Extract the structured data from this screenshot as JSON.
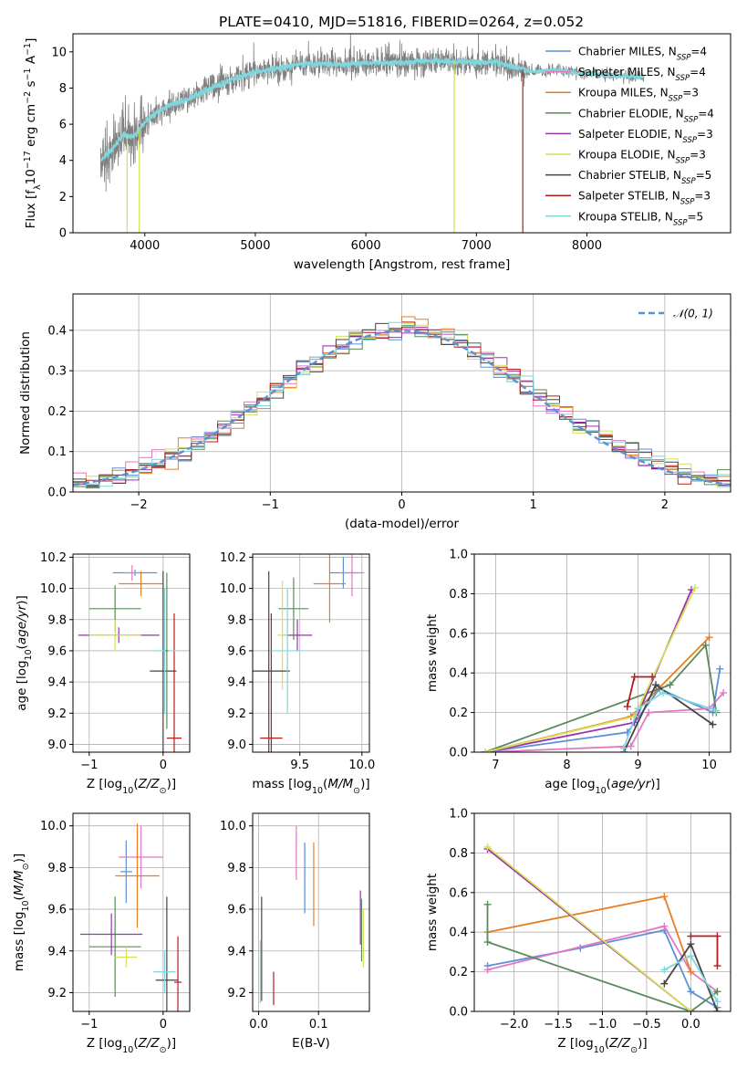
{
  "series_styles": [
    {
      "name": "Chabrier MILES",
      "nssp": "4",
      "color": "#5b8fd6"
    },
    {
      "name": "Salpeter MILES",
      "nssp": "4",
      "color": "#e377c2"
    },
    {
      "name": "Kroupa MILES",
      "nssp": "3",
      "color": "#e67e22"
    },
    {
      "name": "Chabrier ELODIE",
      "nssp": "4",
      "color": "#5a8a5a"
    },
    {
      "name": "Salpeter ELODIE",
      "nssp": "3",
      "color": "#9b30b0"
    },
    {
      "name": "Kroupa ELODIE",
      "nssp": "3",
      "color": "#d4e157"
    },
    {
      "name": "Chabrier STELIB",
      "nssp": "5",
      "color": "#444444"
    },
    {
      "name": "Salpeter STELIB",
      "nssp": "3",
      "color": "#b71c1c"
    },
    {
      "name": "Kroupa STELIB",
      "nssp": "5",
      "color": "#7fd6dc"
    }
  ],
  "chart_data": [
    {
      "id": "spectrum",
      "type": "line",
      "title": "PLATE=0410, MJD=51816, FIBERID=0264, z=0.052",
      "xlabel": "wavelength [Angstrom, rest frame]",
      "ylabel": "Flux [fλ10⁻¹⁷ erg cm⁻² s⁻¹ A⁻¹]",
      "xlim": [
        3350,
        9300
      ],
      "ylim": [
        0,
        11
      ],
      "xticks": [
        4000,
        5000,
        6000,
        7000,
        8000
      ],
      "yticks": [
        0,
        2,
        4,
        6,
        8,
        10
      ],
      "grid": false,
      "legend": "right",
      "data_color": "#808080",
      "model_color": "#7fd6dc",
      "continuum": {
        "x": [
          3600,
          3700,
          3800,
          3900,
          4000,
          4100,
          4200,
          4400,
          4600,
          4800,
          5000,
          5200,
          5400,
          5600,
          5800,
          6000,
          6300,
          6600,
          6900,
          7200,
          7500,
          7700,
          8000,
          8200,
          8500
        ],
        "y": [
          4.0,
          4.6,
          5.4,
          5.3,
          6.1,
          6.6,
          7.0,
          7.4,
          8.0,
          8.5,
          8.9,
          9.1,
          9.3,
          9.35,
          9.3,
          9.4,
          9.4,
          9.5,
          9.45,
          9.4,
          8.9,
          9.0,
          8.8,
          8.7,
          8.6
        ]
      },
      "annotation": "Salpeter MILES, N_SSP=4"
    },
    {
      "id": "residuals",
      "type": "histogram",
      "xlabel": "(data-model)/error",
      "ylabel": "Normed distribution",
      "xlim": [
        -2.5,
        2.5
      ],
      "ylim": [
        0,
        0.49
      ],
      "xticks": [
        -2,
        -1,
        0,
        1,
        2
      ],
      "yticks": [
        0.0,
        0.1,
        0.2,
        0.3,
        0.4
      ],
      "bin_width": 0.1,
      "grid": true,
      "legend": "top-right",
      "reference": {
        "name": "𝒩(0, 1)",
        "mean": 0,
        "sigma": 1,
        "color": "#5b8fd6"
      }
    },
    {
      "id": "age-vs-z",
      "type": "errorbar",
      "xlabel": "Z [log₁₀(Z/Z⊙)]",
      "ylabel": "age  [log₁₀(age/yr)]",
      "xlim": [
        -1.22,
        0.36
      ],
      "ylim": [
        8.95,
        10.22
      ],
      "xticks": [
        -1,
        0
      ],
      "yticks": [
        9.0,
        9.2,
        9.4,
        9.6,
        9.8,
        10.0,
        10.2
      ],
      "grid": true,
      "points": [
        {
          "s": 0,
          "x": -0.38,
          "y": 10.1,
          "xerr": 0.3,
          "yerr": 0.02
        },
        {
          "s": 1,
          "x": -0.42,
          "y": 10.1,
          "xerr": 0.1,
          "yerr": 0.05
        },
        {
          "s": 2,
          "x": -0.3,
          "y": 10.03,
          "xerr": 0.3,
          "yerr": 0.08
        },
        {
          "s": 3,
          "x": -0.65,
          "y": 9.87,
          "xerr": 0.35,
          "yerr": 0.15
        },
        {
          "s": 4,
          "x": -0.6,
          "y": 9.7,
          "xerr": 0.55,
          "yerr": 0.05
        },
        {
          "s": 5,
          "x": -0.65,
          "y": 9.7,
          "xerr": 0.35,
          "yerr": 0.1
        },
        {
          "s": 6,
          "x": 0.0,
          "y": 9.47,
          "xerr": 0.18,
          "yerr": 0.64
        },
        {
          "s": 7,
          "x": 0.15,
          "y": 9.04,
          "xerr": 0.1,
          "yerr": 0.8
        },
        {
          "s": 8,
          "x": 0.02,
          "y": 9.6,
          "xerr": 0.15,
          "yerr": 0.4
        },
        {
          "s": 3,
          "x": 0.05,
          "y": 9.6,
          "xerr": 0.02,
          "yerr": 0.5
        }
      ]
    },
    {
      "id": "age-vs-mass",
      "type": "errorbar",
      "xlabel": "mass [log₁₀(M/M⊙)]",
      "ylabel": "",
      "xlim": [
        9.12,
        10.06
      ],
      "ylim": [
        8.95,
        10.22
      ],
      "xticks": [
        9.5,
        10.0
      ],
      "yticks": [
        9.0,
        9.2,
        9.4,
        9.6,
        9.8,
        10.0,
        10.2
      ],
      "grid": true,
      "points": [
        {
          "s": 0,
          "x": 9.85,
          "y": 10.1,
          "xerr": 0.11,
          "yerr": 0.1
        },
        {
          "s": 1,
          "x": 9.92,
          "y": 10.1,
          "xerr": 0.1,
          "yerr": 0.15
        },
        {
          "s": 2,
          "x": 9.74,
          "y": 10.03,
          "xerr": 0.13,
          "yerr": 0.25
        },
        {
          "s": 3,
          "x": 9.45,
          "y": 9.87,
          "xerr": 0.12,
          "yerr": 0.2
        },
        {
          "s": 4,
          "x": 9.48,
          "y": 9.7,
          "xerr": 0.12,
          "yerr": 0.1
        },
        {
          "s": 5,
          "x": 9.36,
          "y": 9.7,
          "xerr": 0.04,
          "yerr": 0.35
        },
        {
          "s": 6,
          "x": 9.25,
          "y": 9.47,
          "xerr": 0.17,
          "yerr": 0.64
        },
        {
          "s": 7,
          "x": 9.27,
          "y": 9.04,
          "xerr": 0.09,
          "yerr": 0.8
        },
        {
          "s": 8,
          "x": 9.4,
          "y": 9.6,
          "xerr": 0.13,
          "yerr": 0.4
        }
      ]
    },
    {
      "id": "weight-vs-age",
      "type": "line",
      "xlabel": "age  [log₁₀(age/yr)]",
      "ylabel": "mass weight",
      "xlim": [
        6.7,
        10.3
      ],
      "ylim": [
        0,
        1.0
      ],
      "xticks": [
        7,
        8,
        9,
        10
      ],
      "yticks": [
        0.0,
        0.2,
        0.4,
        0.6,
        0.8,
        1.0
      ],
      "grid": true,
      "series": [
        {
          "s": 0,
          "x": [
            6.85,
            8.85,
            9.3,
            10.05,
            10.15
          ],
          "y": [
            0.0,
            0.1,
            0.32,
            0.2,
            0.42
          ]
        },
        {
          "s": 1,
          "x": [
            6.85,
            8.9,
            9.15,
            10.0,
            10.2
          ],
          "y": [
            0.0,
            0.03,
            0.2,
            0.22,
            0.3
          ]
        },
        {
          "s": 2,
          "x": [
            6.85,
            8.9,
            10.0
          ],
          "y": [
            0.0,
            0.18,
            0.58
          ]
        },
        {
          "s": 3,
          "x": [
            6.85,
            9.45,
            9.95,
            10.1
          ],
          "y": [
            0.0,
            0.34,
            0.54,
            0.2
          ]
        },
        {
          "s": 4,
          "x": [
            6.85,
            8.95,
            9.75
          ],
          "y": [
            0.0,
            0.15,
            0.82
          ]
        },
        {
          "s": 5,
          "x": [
            6.85,
            8.95,
            9.8
          ],
          "y": [
            0.0,
            0.18,
            0.83
          ]
        },
        {
          "s": 6,
          "x": [
            8.8,
            9.25,
            10.05
          ],
          "y": [
            0.0,
            0.34,
            0.14
          ]
        },
        {
          "s": 7,
          "x": [
            8.85,
            8.95,
            9.2
          ],
          "y": [
            0.23,
            0.38,
            0.38
          ]
        },
        {
          "s": 8,
          "x": [
            8.8,
            9.0,
            9.35,
            10.1
          ],
          "y": [
            0.02,
            0.22,
            0.3,
            0.21
          ]
        }
      ]
    },
    {
      "id": "mass-vs-z",
      "type": "errorbar",
      "xlabel": "Z [log₁₀(Z/Z⊙)]",
      "ylabel": "mass [log₁₀(M/M⊙)]",
      "xlim": [
        -1.22,
        0.36
      ],
      "ylim": [
        9.11,
        10.06
      ],
      "xticks": [
        -1,
        0
      ],
      "yticks": [
        9.2,
        9.4,
        9.6,
        9.8,
        10.0
      ],
      "grid": true,
      "points": [
        {
          "s": 0,
          "x": -0.5,
          "y": 9.78,
          "xerr": 0.08,
          "yerr": 0.15
        },
        {
          "s": 1,
          "x": -0.3,
          "y": 9.85,
          "xerr": 0.3,
          "yerr": 0.15
        },
        {
          "s": 2,
          "x": -0.35,
          "y": 9.76,
          "xerr": 0.3,
          "yerr": 0.25
        },
        {
          "s": 3,
          "x": -0.65,
          "y": 9.42,
          "xerr": 0.35,
          "yerr": 0.24
        },
        {
          "s": 4,
          "x": -0.7,
          "y": 9.48,
          "xerr": 0.42,
          "yerr": 0.1
        },
        {
          "s": 5,
          "x": -0.5,
          "y": 9.37,
          "xerr": 0.15,
          "yerr": 0.05
        },
        {
          "s": 6,
          "x": 0.05,
          "y": 9.26,
          "xerr": 0.15,
          "yerr": 0.4
        },
        {
          "s": 7,
          "x": 0.2,
          "y": 9.25,
          "xerr": 0.05,
          "yerr": 0.22
        },
        {
          "s": 8,
          "x": 0.02,
          "y": 9.3,
          "xerr": 0.15,
          "yerr": 0.1
        }
      ]
    },
    {
      "id": "mass-vs-ebv",
      "type": "errorbar",
      "xlabel": "E(B-V)",
      "ylabel": "",
      "xlim": [
        -0.01,
        0.185
      ],
      "ylim": [
        9.11,
        10.06
      ],
      "xticks": [
        0.0,
        0.1
      ],
      "yticks": [
        9.2,
        9.4,
        9.6,
        9.8,
        10.0
      ],
      "grid": true,
      "points": [
        {
          "s": 0,
          "x": 0.077,
          "y": 9.75,
          "xerr": 0,
          "yerr": 0.17
        },
        {
          "s": 1,
          "x": 0.063,
          "y": 9.87,
          "xerr": 0,
          "yerr": 0.13
        },
        {
          "s": 2,
          "x": 0.092,
          "y": 9.72,
          "xerr": 0,
          "yerr": 0.2
        },
        {
          "s": 3,
          "x": 0.172,
          "y": 9.5,
          "xerr": 0,
          "yerr": 0.15
        },
        {
          "s": 4,
          "x": 0.17,
          "y": 9.56,
          "xerr": 0,
          "yerr": 0.13
        },
        {
          "s": 5,
          "x": 0.175,
          "y": 9.46,
          "xerr": 0,
          "yerr": 0.14
        },
        {
          "s": 6,
          "x": 0.005,
          "y": 9.41,
          "xerr": 0,
          "yerr": 0.25
        },
        {
          "s": 7,
          "x": 0.025,
          "y": 9.22,
          "xerr": 0,
          "yerr": 0.08
        },
        {
          "s": 8,
          "x": 0.003,
          "y": 9.3,
          "xerr": 0,
          "yerr": 0.15
        }
      ]
    },
    {
      "id": "weight-vs-z",
      "type": "line",
      "xlabel": "Z [log₁₀(Z/Z⊙)]",
      "ylabel": "mass weight",
      "xlim": [
        -2.45,
        0.45
      ],
      "ylim": [
        0,
        1.0
      ],
      "xticks": [
        -2.0,
        -1.5,
        -1.0,
        -0.5,
        0.0
      ],
      "yticks": [
        0.0,
        0.2,
        0.4,
        0.6,
        0.8,
        1.0
      ],
      "grid": true,
      "series": [
        {
          "s": 0,
          "x": [
            -2.3,
            -1.25,
            -0.3,
            0.0,
            0.3
          ],
          "y": [
            0.23,
            0.32,
            0.41,
            0.1,
            0.02
          ]
        },
        {
          "s": 1,
          "x": [
            -2.3,
            -0.3,
            0.0,
            0.3
          ],
          "y": [
            0.21,
            0.43,
            0.2,
            0.1
          ]
        },
        {
          "s": 2,
          "x": [
            -2.3,
            -0.3,
            0.0
          ],
          "y": [
            0.4,
            0.58,
            0.2
          ]
        },
        {
          "s": 3,
          "x": [
            -2.3,
            -2.3,
            0.0,
            0.3
          ],
          "y": [
            0.54,
            0.35,
            0.0,
            0.1
          ]
        },
        {
          "s": 4,
          "x": [
            -2.3,
            0.0
          ],
          "y": [
            0.82,
            0.0
          ]
        },
        {
          "s": 5,
          "x": [
            -2.3,
            0.0
          ],
          "y": [
            0.83,
            0.0
          ]
        },
        {
          "s": 6,
          "x": [
            -0.3,
            0.0,
            0.3
          ],
          "y": [
            0.14,
            0.34,
            0.0
          ]
        },
        {
          "s": 7,
          "x": [
            0.0,
            0.3,
            0.3
          ],
          "y": [
            0.38,
            0.38,
            0.23
          ]
        },
        {
          "s": 8,
          "x": [
            -0.3,
            0.0,
            0.3
          ],
          "y": [
            0.21,
            0.28,
            0.05
          ]
        }
      ]
    }
  ]
}
